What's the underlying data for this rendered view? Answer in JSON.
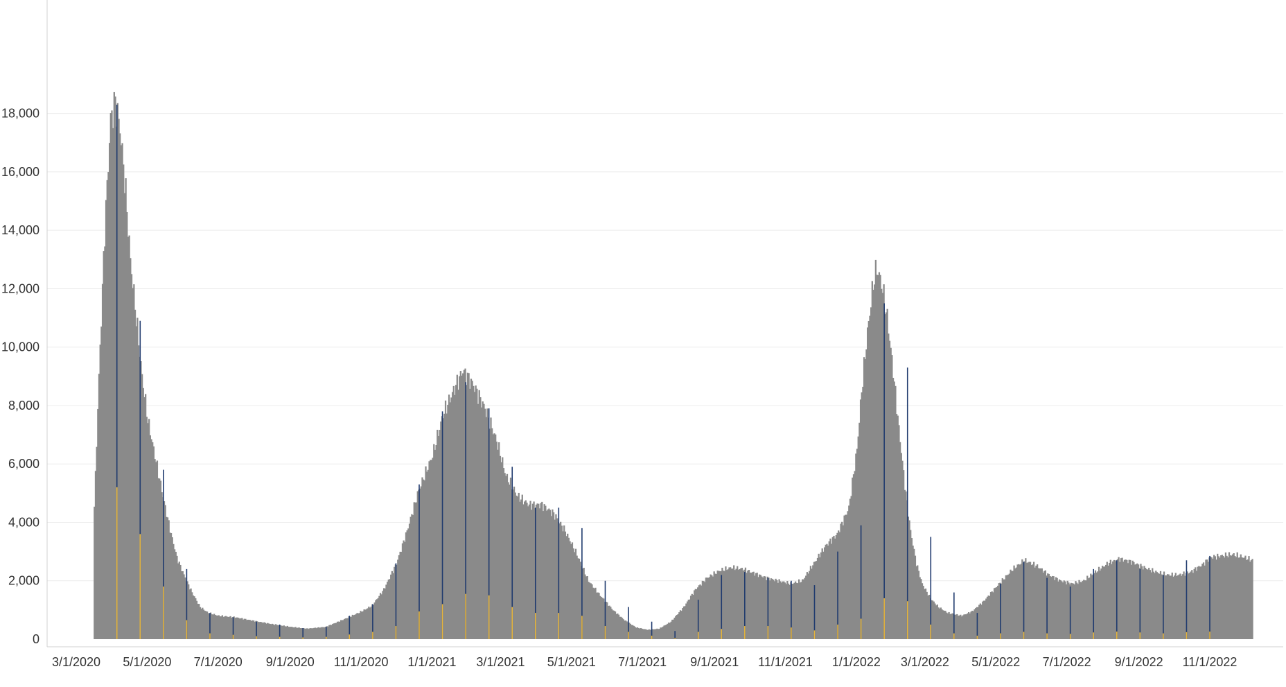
{
  "chart_data": {
    "type": "bar",
    "title": "",
    "xlabel": "",
    "ylabel": "",
    "ylim": [
      0,
      18500
    ],
    "yticks": [
      0,
      2000,
      4000,
      6000,
      8000,
      10000,
      12000,
      14000,
      16000,
      18000
    ],
    "ytick_labels": [
      "0",
      "2,000",
      "4,000",
      "6,000",
      "8,000",
      "10,000",
      "12,000",
      "14,000",
      "16,000",
      "18,000"
    ],
    "xlim": [
      "2020-02-20",
      "2022-12-25"
    ],
    "xticks": [
      "2020-03-01",
      "2020-05-01",
      "2020-07-01",
      "2020-09-01",
      "2020-11-01",
      "2021-01-01",
      "2021-03-01",
      "2021-05-01",
      "2021-07-01",
      "2021-09-01",
      "2021-11-01",
      "2022-01-01",
      "2022-03-01",
      "2022-05-01",
      "2022-07-01",
      "2022-09-01",
      "2022-11-01"
    ],
    "xtick_labels": [
      "3/1/2020",
      "5/1/2020",
      "7/1/2020",
      "9/1/2020",
      "11/1/2020",
      "1/1/2021",
      "3/1/2021",
      "5/1/2021",
      "7/1/2021",
      "9/1/2021",
      "11/1/2021",
      "1/1/2022",
      "3/1/2022",
      "5/1/2022",
      "7/1/2022",
      "9/1/2022",
      "11/1/2022"
    ],
    "grid": true,
    "legend": "none",
    "series": [
      {
        "color": "#8a8a8a",
        "points": [
          [
            "2020-03-15",
            0
          ],
          [
            "2020-03-16",
            4500
          ],
          [
            "2020-03-20",
            9000
          ],
          [
            "2020-03-25",
            14000
          ],
          [
            "2020-03-30",
            17800
          ],
          [
            "2020-04-03",
            18400
          ],
          [
            "2020-04-07",
            17500
          ],
          [
            "2020-04-11",
            15800
          ],
          [
            "2020-04-16",
            13000
          ],
          [
            "2020-04-21",
            11000
          ],
          [
            "2020-04-26",
            9000
          ],
          [
            "2020-05-01",
            7500
          ],
          [
            "2020-05-06",
            6500
          ],
          [
            "2020-05-11",
            5500
          ],
          [
            "2020-05-16",
            4500
          ],
          [
            "2020-05-21",
            3600
          ],
          [
            "2020-05-26",
            2800
          ],
          [
            "2020-06-01",
            2200
          ],
          [
            "2020-06-08",
            1600
          ],
          [
            "2020-06-15",
            1100
          ],
          [
            "2020-06-22",
            900
          ],
          [
            "2020-07-01",
            800
          ],
          [
            "2020-07-15",
            750
          ],
          [
            "2020-08-01",
            620
          ],
          [
            "2020-08-15",
            520
          ],
          [
            "2020-09-01",
            420
          ],
          [
            "2020-09-15",
            360
          ],
          [
            "2020-10-01",
            420
          ],
          [
            "2020-10-15",
            650
          ],
          [
            "2020-11-01",
            950
          ],
          [
            "2020-11-10",
            1150
          ],
          [
            "2020-11-20",
            1700
          ],
          [
            "2020-12-01",
            2600
          ],
          [
            "2020-12-10",
            3700
          ],
          [
            "2020-12-20",
            5100
          ],
          [
            "2021-01-01",
            6300
          ],
          [
            "2021-01-10",
            7700
          ],
          [
            "2021-01-20",
            8600
          ],
          [
            "2021-01-27",
            9200
          ],
          [
            "2021-02-05",
            8700
          ],
          [
            "2021-02-15",
            7900
          ],
          [
            "2021-02-25",
            6800
          ],
          [
            "2021-03-05",
            5600
          ],
          [
            "2021-03-15",
            4900
          ],
          [
            "2021-03-25",
            4600
          ],
          [
            "2021-04-05",
            4600
          ],
          [
            "2021-04-15",
            4300
          ],
          [
            "2021-04-25",
            3700
          ],
          [
            "2021-05-05",
            2900
          ],
          [
            "2021-05-15",
            2000
          ],
          [
            "2021-05-25",
            1500
          ],
          [
            "2021-06-05",
            1000
          ],
          [
            "2021-06-15",
            650
          ],
          [
            "2021-06-25",
            400
          ],
          [
            "2021-07-05",
            320
          ],
          [
            "2021-07-15",
            360
          ],
          [
            "2021-07-25",
            600
          ],
          [
            "2021-08-05",
            1100
          ],
          [
            "2021-08-15",
            1700
          ],
          [
            "2021-08-25",
            2100
          ],
          [
            "2021-09-05",
            2350
          ],
          [
            "2021-09-15",
            2450
          ],
          [
            "2021-09-25",
            2400
          ],
          [
            "2021-10-05",
            2250
          ],
          [
            "2021-10-15",
            2100
          ],
          [
            "2021-10-25",
            2000
          ],
          [
            "2021-11-05",
            1900
          ],
          [
            "2021-11-15",
            2000
          ],
          [
            "2021-11-25",
            2600
          ],
          [
            "2021-12-05",
            3200
          ],
          [
            "2021-12-15",
            3600
          ],
          [
            "2021-12-25",
            4500
          ],
          [
            "2022-01-01",
            6500
          ],
          [
            "2022-01-05",
            8500
          ],
          [
            "2022-01-10",
            10500
          ],
          [
            "2022-01-15",
            12200
          ],
          [
            "2022-01-18",
            12700
          ],
          [
            "2022-01-22",
            12200
          ],
          [
            "2022-01-27",
            11000
          ],
          [
            "2022-02-01",
            9200
          ],
          [
            "2022-02-06",
            7200
          ],
          [
            "2022-02-11",
            5300
          ],
          [
            "2022-02-16",
            3700
          ],
          [
            "2022-02-21",
            2600
          ],
          [
            "2022-02-26",
            1900
          ],
          [
            "2022-03-05",
            1400
          ],
          [
            "2022-03-12",
            1100
          ],
          [
            "2022-03-20",
            900
          ],
          [
            "2022-04-01",
            800
          ],
          [
            "2022-04-10",
            950
          ],
          [
            "2022-04-20",
            1300
          ],
          [
            "2022-05-01",
            1800
          ],
          [
            "2022-05-15",
            2400
          ],
          [
            "2022-05-25",
            2700
          ],
          [
            "2022-06-05",
            2500
          ],
          [
            "2022-06-15",
            2200
          ],
          [
            "2022-06-25",
            2000
          ],
          [
            "2022-07-05",
            1900
          ],
          [
            "2022-07-15",
            2000
          ],
          [
            "2022-07-25",
            2300
          ],
          [
            "2022-08-05",
            2600
          ],
          [
            "2022-08-15",
            2750
          ],
          [
            "2022-08-25",
            2650
          ],
          [
            "2022-09-05",
            2450
          ],
          [
            "2022-09-15",
            2300
          ],
          [
            "2022-09-25",
            2200
          ],
          [
            "2022-10-05",
            2200
          ],
          [
            "2022-10-15",
            2300
          ],
          [
            "2022-10-25",
            2550
          ],
          [
            "2022-11-01",
            2800
          ],
          [
            "2022-11-10",
            2850
          ],
          [
            "2022-11-20",
            2900
          ],
          [
            "2022-11-30",
            2800
          ],
          [
            "2022-12-07",
            2700
          ]
        ]
      },
      {
        "color": "#1f3a6e",
        "points": [
          [
            "2020-04-05",
            18300
          ],
          [
            "2020-04-25",
            10900
          ],
          [
            "2020-05-15",
            5800
          ],
          [
            "2020-06-04",
            2400
          ],
          [
            "2020-06-24",
            900
          ],
          [
            "2020-07-14",
            750
          ],
          [
            "2020-08-03",
            600
          ],
          [
            "2020-08-23",
            500
          ],
          [
            "2020-09-12",
            380
          ],
          [
            "2020-10-02",
            420
          ],
          [
            "2020-10-22",
            800
          ],
          [
            "2020-11-11",
            1200
          ],
          [
            "2020-12-01",
            2600
          ],
          [
            "2020-12-21",
            5300
          ],
          [
            "2021-01-10",
            7800
          ],
          [
            "2021-01-30",
            8800
          ],
          [
            "2021-02-19",
            7900
          ],
          [
            "2021-03-11",
            5900
          ],
          [
            "2021-03-31",
            4500
          ],
          [
            "2021-04-20",
            4500
          ],
          [
            "2021-05-10",
            3800
          ],
          [
            "2021-05-30",
            2000
          ],
          [
            "2021-06-19",
            1100
          ],
          [
            "2021-07-09",
            600
          ],
          [
            "2021-07-29",
            280
          ],
          [
            "2021-08-18",
            1350
          ],
          [
            "2021-09-07",
            2200
          ],
          [
            "2021-09-27",
            2300
          ],
          [
            "2021-10-17",
            2100
          ],
          [
            "2021-11-06",
            2000
          ],
          [
            "2021-11-26",
            1850
          ],
          [
            "2021-12-16",
            3000
          ],
          [
            "2022-01-05",
            3900
          ],
          [
            "2022-01-25",
            11500
          ],
          [
            "2022-02-14",
            9300
          ],
          [
            "2022-03-06",
            3500
          ],
          [
            "2022-03-26",
            1600
          ],
          [
            "2022-04-15",
            900
          ],
          [
            "2022-05-05",
            1900
          ],
          [
            "2022-05-25",
            2650
          ],
          [
            "2022-06-14",
            2100
          ],
          [
            "2022-07-04",
            1800
          ],
          [
            "2022-07-24",
            2400
          ],
          [
            "2022-08-13",
            2700
          ],
          [
            "2022-09-02",
            2400
          ],
          [
            "2022-09-22",
            2200
          ],
          [
            "2022-10-12",
            2700
          ],
          [
            "2022-11-01",
            2850
          ]
        ]
      },
      {
        "color": "#e5b43c",
        "points": [
          [
            "2020-04-05",
            5200
          ],
          [
            "2020-04-25",
            3600
          ],
          [
            "2020-05-15",
            1800
          ],
          [
            "2020-06-04",
            650
          ],
          [
            "2020-06-24",
            200
          ],
          [
            "2020-07-14",
            150
          ],
          [
            "2020-08-03",
            100
          ],
          [
            "2020-08-23",
            80
          ],
          [
            "2020-09-12",
            60
          ],
          [
            "2020-10-02",
            80
          ],
          [
            "2020-10-22",
            160
          ],
          [
            "2020-11-11",
            250
          ],
          [
            "2020-12-01",
            450
          ],
          [
            "2020-12-21",
            950
          ],
          [
            "2021-01-10",
            1200
          ],
          [
            "2021-01-30",
            1550
          ],
          [
            "2021-02-19",
            1500
          ],
          [
            "2021-03-11",
            1100
          ],
          [
            "2021-03-31",
            900
          ],
          [
            "2021-04-20",
            900
          ],
          [
            "2021-05-10",
            800
          ],
          [
            "2021-05-30",
            450
          ],
          [
            "2021-06-19",
            250
          ],
          [
            "2021-07-09",
            120
          ],
          [
            "2021-07-29",
            40
          ],
          [
            "2021-08-18",
            250
          ],
          [
            "2021-09-07",
            350
          ],
          [
            "2021-09-27",
            450
          ],
          [
            "2021-10-17",
            450
          ],
          [
            "2021-11-06",
            400
          ],
          [
            "2021-11-26",
            300
          ],
          [
            "2021-12-16",
            500
          ],
          [
            "2022-01-05",
            700
          ],
          [
            "2022-01-25",
            1400
          ],
          [
            "2022-02-14",
            1300
          ],
          [
            "2022-03-06",
            500
          ],
          [
            "2022-03-26",
            200
          ],
          [
            "2022-04-15",
            120
          ],
          [
            "2022-05-05",
            200
          ],
          [
            "2022-05-25",
            250
          ],
          [
            "2022-06-14",
            200
          ],
          [
            "2022-07-04",
            180
          ],
          [
            "2022-07-24",
            230
          ],
          [
            "2022-08-13",
            260
          ],
          [
            "2022-09-02",
            230
          ],
          [
            "2022-09-22",
            200
          ],
          [
            "2022-10-12",
            240
          ],
          [
            "2022-11-01",
            260
          ]
        ]
      }
    ],
    "colors": {
      "grid": "#ececec",
      "axis": "#d0d0d0",
      "text": "#333333"
    }
  }
}
